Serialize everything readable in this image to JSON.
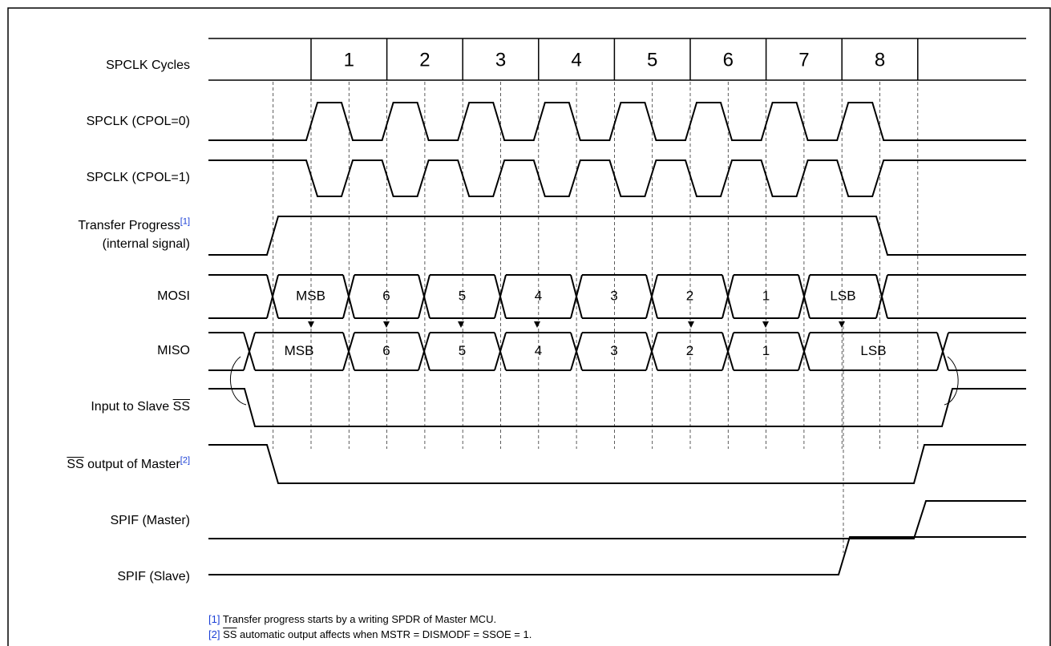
{
  "cycles_label": "SPCLK Cycles",
  "cycles": [
    "1",
    "2",
    "3",
    "4",
    "5",
    "6",
    "7",
    "8"
  ],
  "signals": {
    "cpol0": "SPCLK (CPOL=0)",
    "cpol1": "SPCLK (CPOL=1)",
    "transfer": {
      "text": "Transfer Progress",
      "ref": "[1]",
      "sub": "(internal signal)"
    },
    "mosi": "MOSI",
    "miso": "MISO",
    "slave_ss": {
      "text": "Input to Slave ",
      "over": "SS"
    },
    "master_ss": {
      "over": "SS",
      "text": " output of Master",
      "ref": "[2]"
    },
    "spif_master": "SPIF (Master)",
    "spif_slave": "SPIF (Slave)"
  },
  "mosi_bits": [
    "MSB",
    "6",
    "5",
    "4",
    "3",
    "2",
    "1",
    "LSB"
  ],
  "miso_bits": [
    "MSB",
    "6",
    "5",
    "4",
    "3",
    "2",
    "1",
    "LSB"
  ],
  "notes": [
    {
      "ref": "[1]",
      "text": " Transfer progress starts by a writing SPDR of Master MCU."
    },
    {
      "ref": "[2]",
      "over": "SS",
      "text": " automatic output affects when MSTR = DISMODF = SSOE = 1."
    }
  ]
}
